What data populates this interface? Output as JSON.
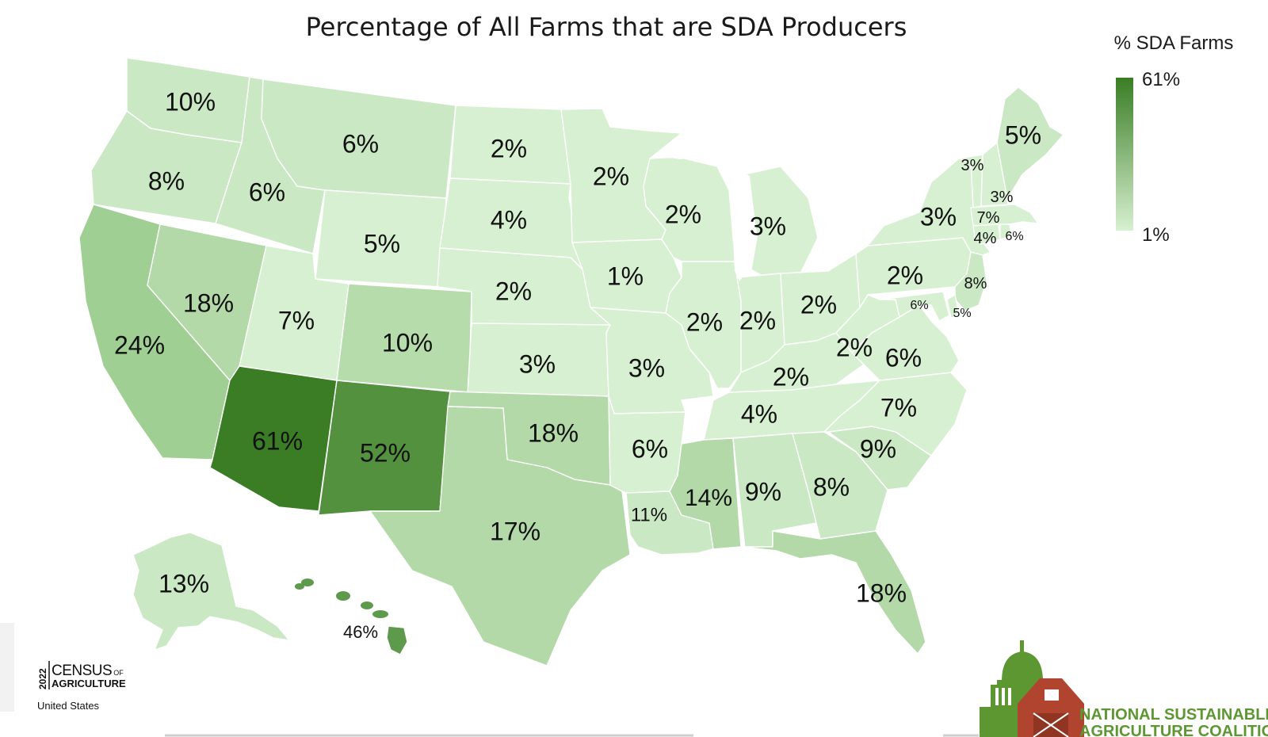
{
  "title": "Percentage of All Farms that are SDA Producers",
  "legend": {
    "title": "% SDA Farms",
    "max_label": "61%",
    "min_label": "1%",
    "max_color": "#3a7d24",
    "min_color": "#d7f0d1"
  },
  "colors": {
    "very_light": "#d7f0d1",
    "light": "#cae8c4",
    "mid_light": "#b2d9a7",
    "mid": "#a0cf93",
    "mid_dark": "#b7dcac",
    "dark": "#54913f",
    "darkest": "#3a7d24",
    "hawaii": "#5e9a4b",
    "border": "#ffffff"
  },
  "states": [
    {
      "id": "WA",
      "label": "10%",
      "value": 10
    },
    {
      "id": "OR",
      "label": "8%",
      "value": 8
    },
    {
      "id": "CA",
      "label": "24%",
      "value": 24
    },
    {
      "id": "ID",
      "label": "6%",
      "value": 6
    },
    {
      "id": "NV",
      "label": "18%",
      "value": 18
    },
    {
      "id": "MT",
      "label": "6%",
      "value": 6
    },
    {
      "id": "WY",
      "label": "5%",
      "value": 5
    },
    {
      "id": "UT",
      "label": "7%",
      "value": 7
    },
    {
      "id": "AZ",
      "label": "61%",
      "value": 61
    },
    {
      "id": "CO",
      "label": "10%",
      "value": 10
    },
    {
      "id": "NM",
      "label": "52%",
      "value": 52
    },
    {
      "id": "ND",
      "label": "2%",
      "value": 2
    },
    {
      "id": "SD",
      "label": "4%",
      "value": 4
    },
    {
      "id": "NE",
      "label": "2%",
      "value": 2
    },
    {
      "id": "KS",
      "label": "3%",
      "value": 3
    },
    {
      "id": "OK",
      "label": "18%",
      "value": 18
    },
    {
      "id": "TX",
      "label": "17%",
      "value": 17
    },
    {
      "id": "MN",
      "label": "2%",
      "value": 2
    },
    {
      "id": "IA",
      "label": "1%",
      "value": 1
    },
    {
      "id": "MO",
      "label": "3%",
      "value": 3
    },
    {
      "id": "AR",
      "label": "6%",
      "value": 6
    },
    {
      "id": "LA",
      "label": "11%",
      "value": 11
    },
    {
      "id": "WI",
      "label": "2%",
      "value": 2
    },
    {
      "id": "IL",
      "label": "2%",
      "value": 2
    },
    {
      "id": "MI",
      "label": "3%",
      "value": 3
    },
    {
      "id": "IN",
      "label": "2%",
      "value": 2
    },
    {
      "id": "OH",
      "label": "2%",
      "value": 2
    },
    {
      "id": "KY",
      "label": "2%",
      "value": 2
    },
    {
      "id": "TN",
      "label": "4%",
      "value": 4
    },
    {
      "id": "MS",
      "label": "14%",
      "value": 14
    },
    {
      "id": "AL",
      "label": "9%",
      "value": 9
    },
    {
      "id": "GA",
      "label": "8%",
      "value": 8
    },
    {
      "id": "FL",
      "label": "18%",
      "value": 18
    },
    {
      "id": "SC",
      "label": "9%",
      "value": 9
    },
    {
      "id": "NC",
      "label": "7%",
      "value": 7
    },
    {
      "id": "VA",
      "label": "6%",
      "value": 6
    },
    {
      "id": "WV",
      "label": "2%",
      "value": 2
    },
    {
      "id": "PA",
      "label": "2%",
      "value": 2
    },
    {
      "id": "NY",
      "label": "3%",
      "value": 3
    },
    {
      "id": "VT",
      "label": "3%",
      "value": 3
    },
    {
      "id": "NH",
      "label": "3%",
      "value": 3
    },
    {
      "id": "ME",
      "label": "5%",
      "value": 5
    },
    {
      "id": "MA",
      "label": "7%",
      "value": 7
    },
    {
      "id": "CT",
      "label": "4%",
      "value": 4
    },
    {
      "id": "RI",
      "label": "6%",
      "value": 6
    },
    {
      "id": "NJ",
      "label": "8%",
      "value": 8
    },
    {
      "id": "MD",
      "label": "6%",
      "value": 6
    },
    {
      "id": "DE",
      "label": "5%",
      "value": 5
    },
    {
      "id": "AK",
      "label": "13%",
      "value": 13
    },
    {
      "id": "HI",
      "label": "46%",
      "value": 46
    }
  ],
  "census_logo": {
    "year": "2022",
    "name": "CENSUS",
    "of": "OF",
    "subtitle": "AGRICULTURE",
    "country": "United States"
  },
  "nsac_logo": {
    "line1": "NATIONAL SUSTAINABLE",
    "line2": "AGRICULTURE COALITION"
  }
}
